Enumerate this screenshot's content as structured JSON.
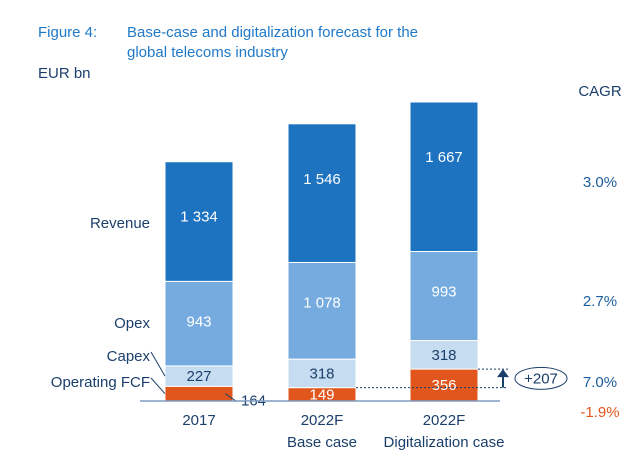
{
  "chart_data": {
    "type": "stacked_bar",
    "figure_label": "Figure 4:",
    "title_lines": [
      "Base-case and digitalization forecast for the",
      "global telecoms industry"
    ],
    "unit_label": "EUR bn",
    "categories": [
      "2017",
      "2022F",
      "2022F"
    ],
    "sublabels": [
      null,
      "Base case",
      "Digitalization case"
    ],
    "cagr_title": "CAGR",
    "series": [
      {
        "name": "Operating FCF",
        "color": "#e0561c",
        "label_color": "#ffffff",
        "values": [
          164,
          149,
          356
        ],
        "value_labels": [
          "164",
          "149",
          "356"
        ],
        "label_outside": [
          true,
          false,
          false
        ],
        "cagr": -1.9,
        "cagr_label": "-1.9%",
        "cagr_color": "#e0561c"
      },
      {
        "name": "Capex",
        "color": "#c6dcf1",
        "label_color": "#1b3f6b",
        "values": [
          227,
          318,
          318
        ],
        "value_labels": [
          "227",
          "318",
          "318"
        ],
        "cagr": 7.0,
        "cagr_label": "7.0%",
        "cagr_color": "#1b5e9e"
      },
      {
        "name": "Opex",
        "color": "#76abdf",
        "label_color": "#ffffff",
        "values": [
          943,
          1078,
          993
        ],
        "value_labels": [
          "943",
          "1 078",
          "993"
        ],
        "cagr": 2.7,
        "cagr_label": "2.7%",
        "cagr_color": "#1b5e9e"
      },
      {
        "name": "Revenue",
        "color": "#1d73bf",
        "label_color": "#ffffff",
        "values": [
          1334,
          1546,
          1667
        ],
        "value_labels": [
          "1 334",
          "1 546",
          "1 667"
        ],
        "cagr": 3.0,
        "cagr_label": "3.0%",
        "cagr_color": "#1b5e9e"
      }
    ],
    "annotation": {
      "text": "+207"
    }
  }
}
